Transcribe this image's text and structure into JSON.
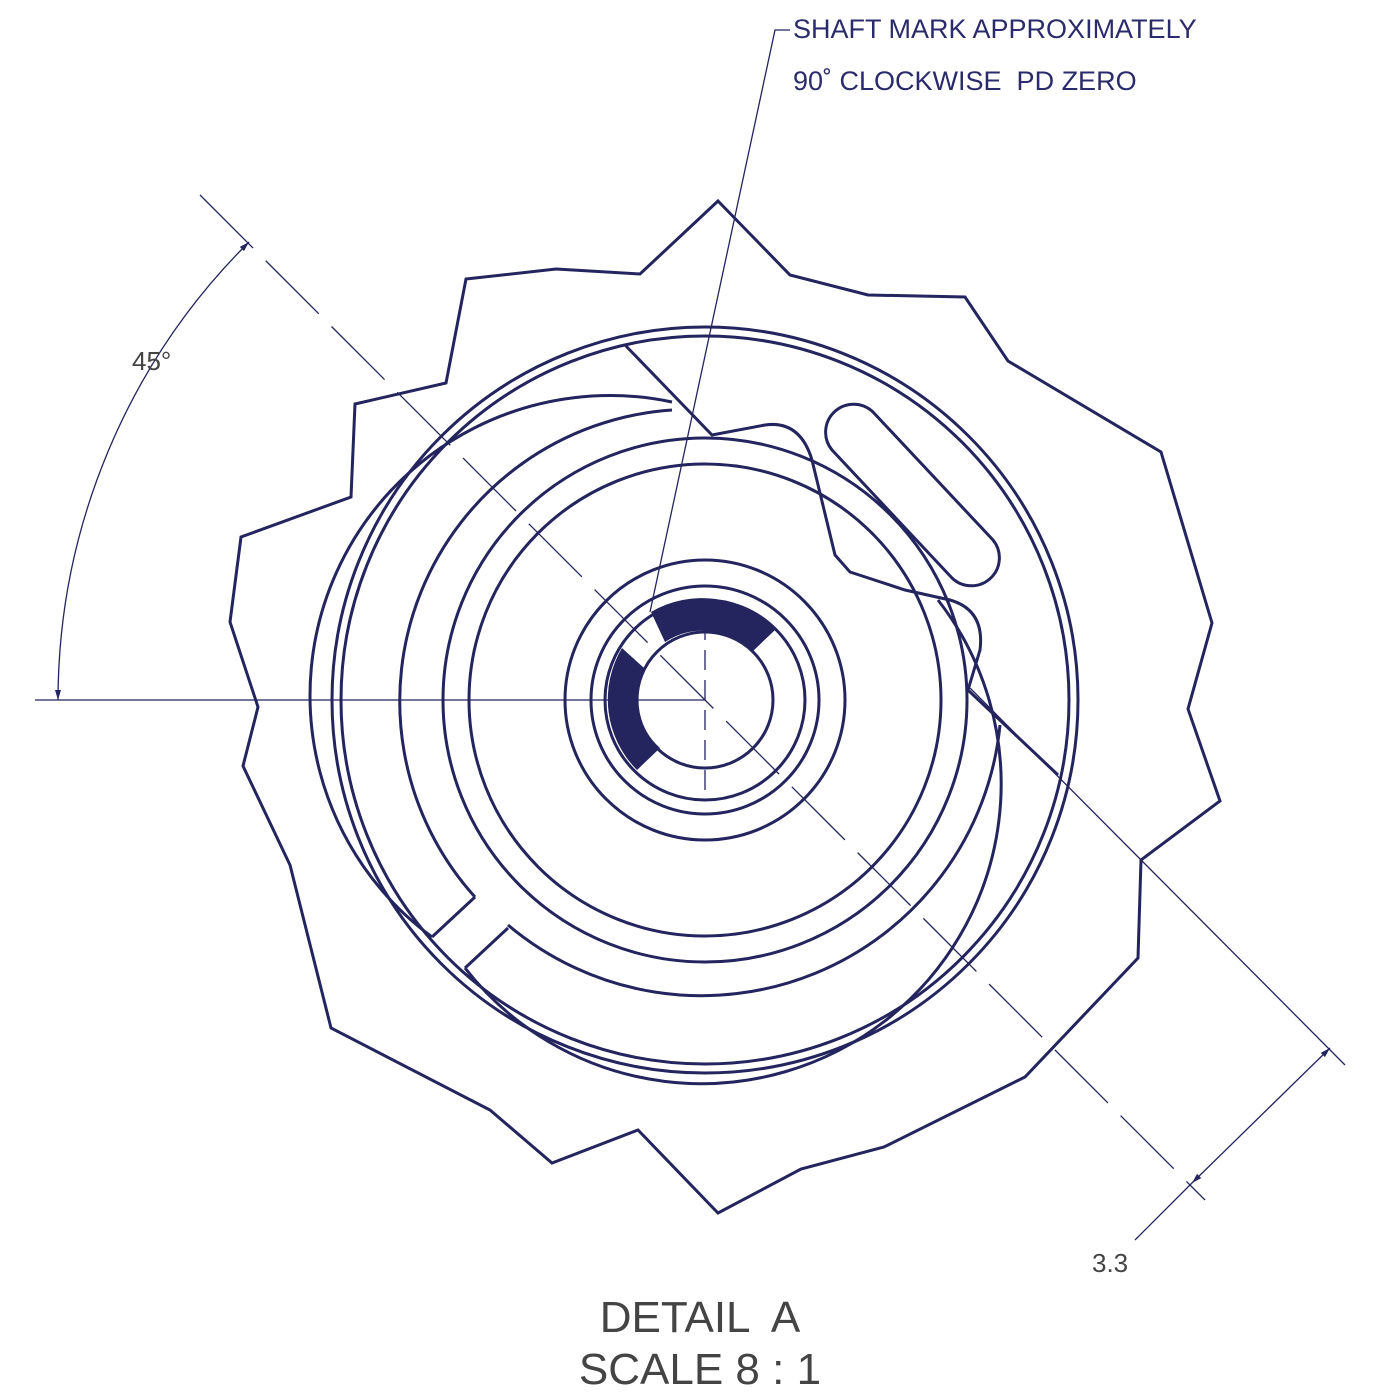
{
  "note": {
    "lines": [
      "SHAFT MARK APPROXIMATELY",
      "90˚ CLOCKWISE  PD ZERO"
    ]
  },
  "dimensions": [
    {
      "label": "45°"
    },
    {
      "label": "3.3"
    }
  ],
  "caption": {
    "title": "DETAIL  A",
    "scale": "SCALE 8 : 1"
  }
}
